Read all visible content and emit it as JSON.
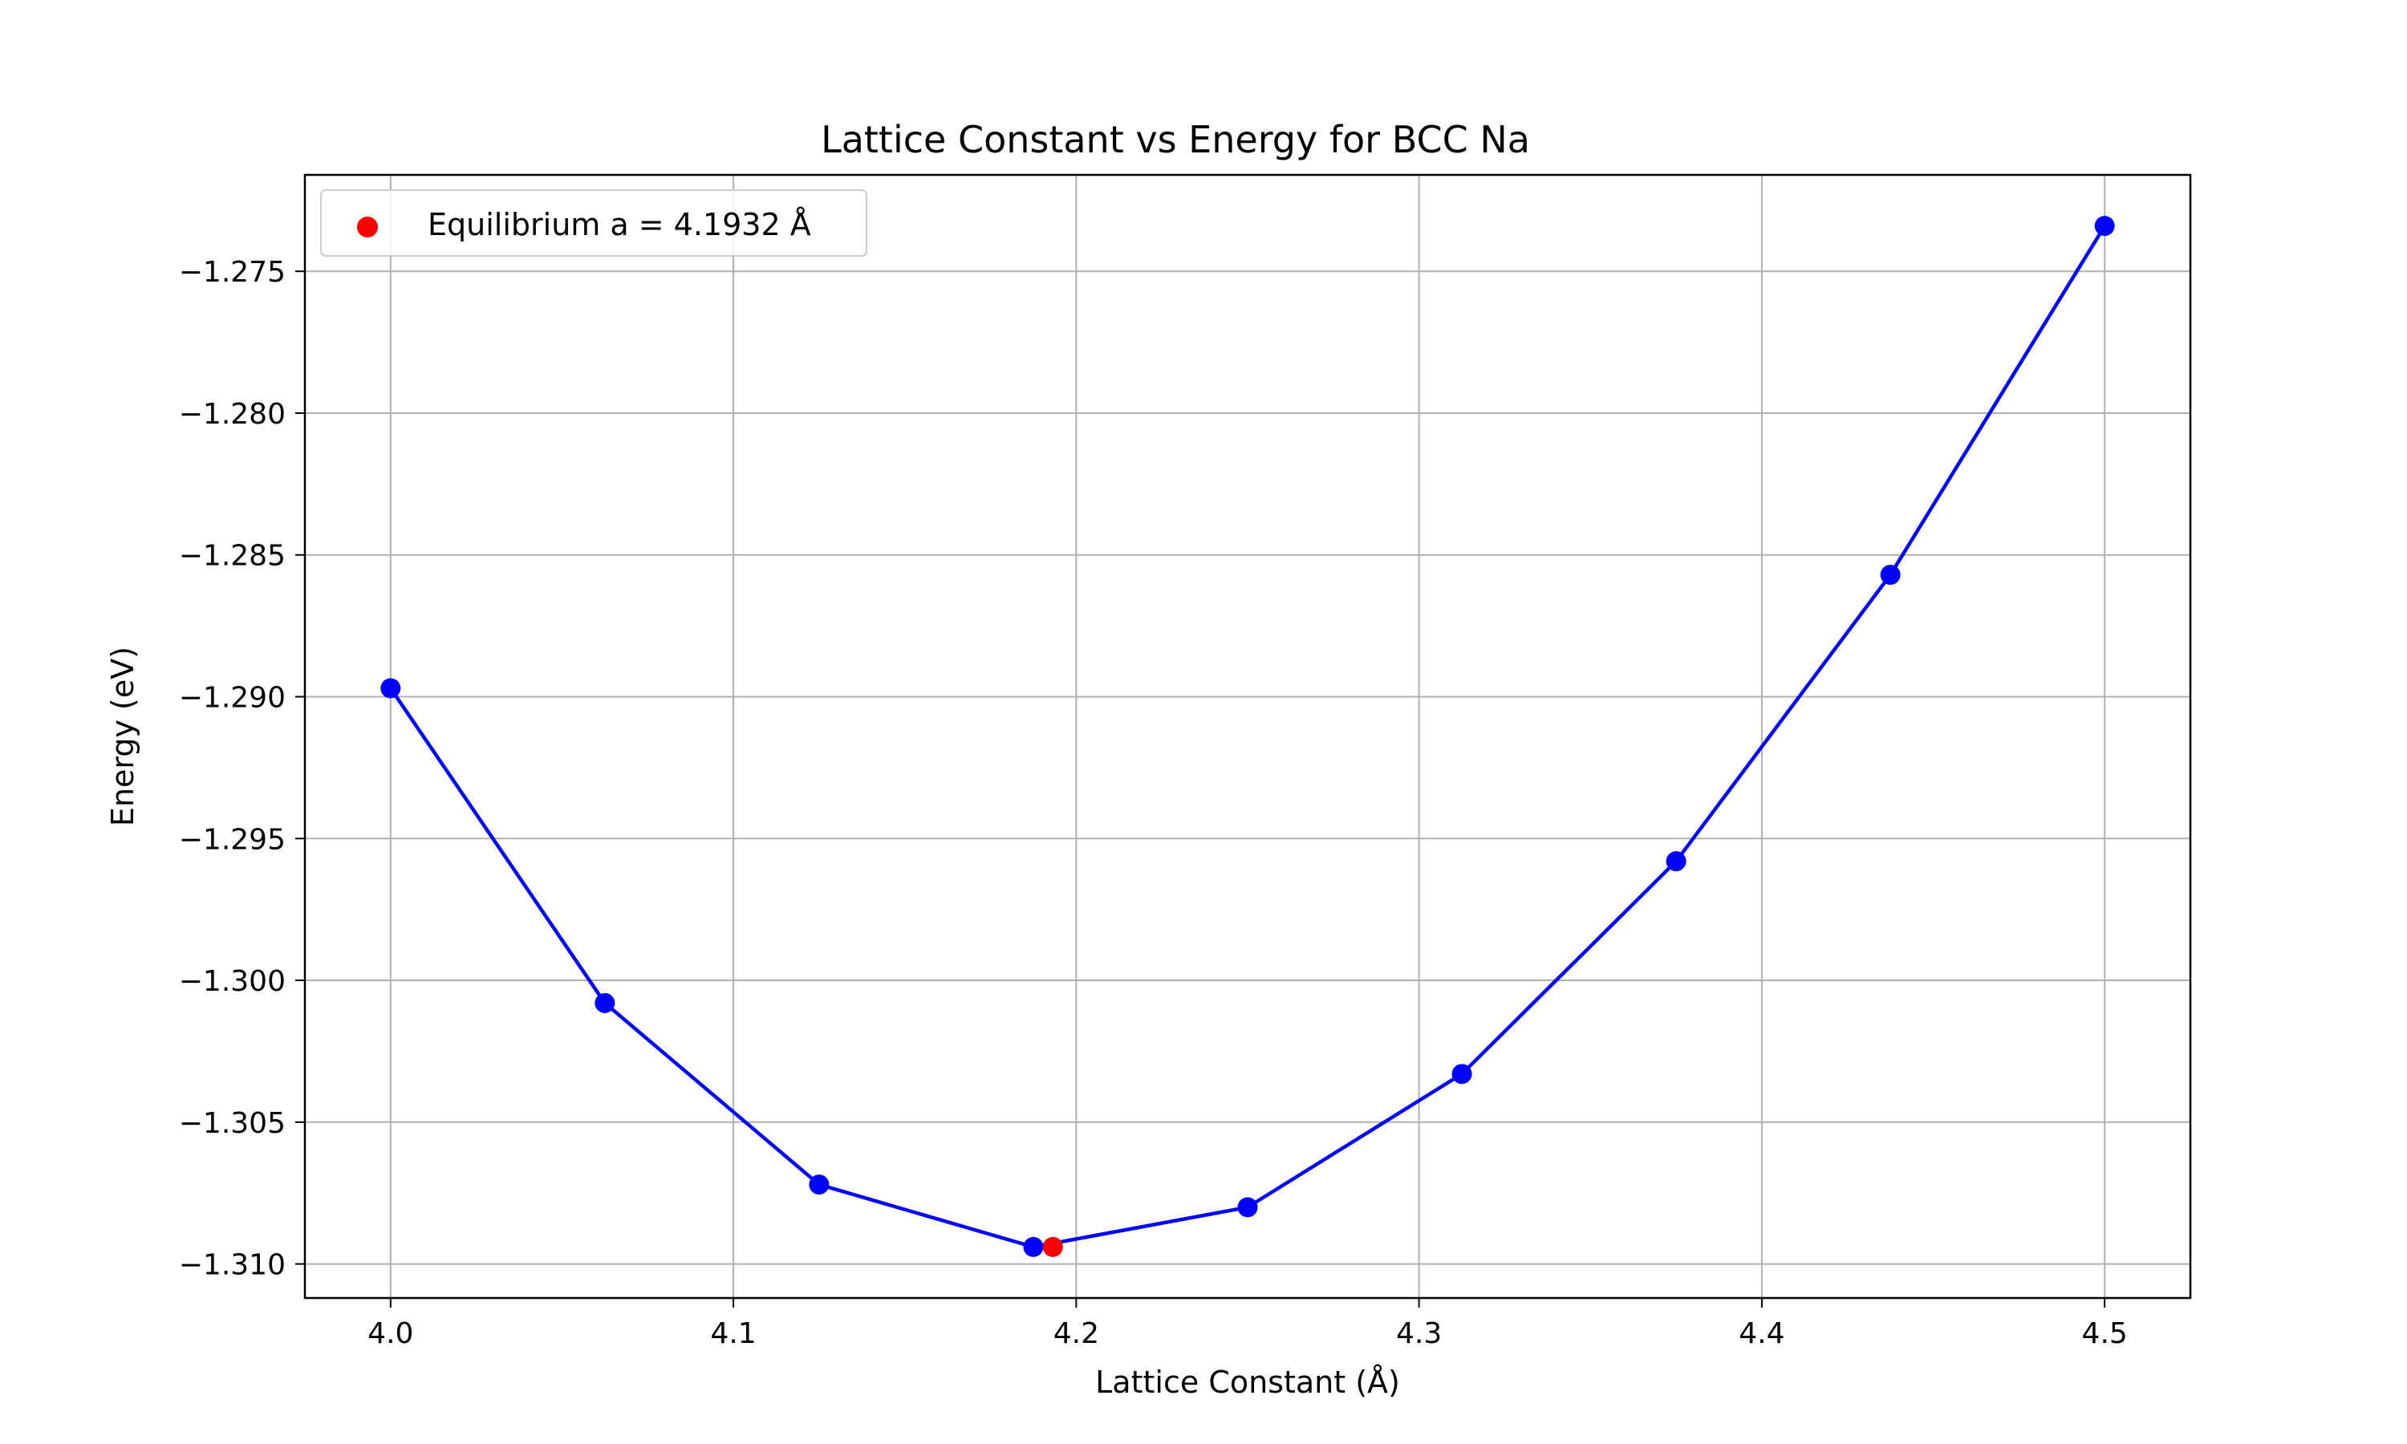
{
  "chart_data": {
    "type": "line",
    "title": "Lattice Constant vs Energy for BCC Na",
    "xlabel": "Lattice Constant (Å)",
    "ylabel": "Energy (eV)",
    "xlim": [
      3.975,
      4.525
    ],
    "ylim": [
      -1.3112,
      -1.2716
    ],
    "xticks": [
      4.0,
      4.1,
      4.2,
      4.3,
      4.4,
      4.5
    ],
    "xtick_labels": [
      "4.0",
      "4.1",
      "4.2",
      "4.3",
      "4.4",
      "4.5"
    ],
    "yticks": [
      -1.275,
      -1.28,
      -1.285,
      -1.29,
      -1.295,
      -1.3,
      -1.305,
      -1.31
    ],
    "ytick_labels": [
      "−1.275",
      "−1.280",
      "−1.285",
      "−1.290",
      "−1.295",
      "−1.300",
      "−1.305",
      "−1.310"
    ],
    "grid": true,
    "legend_position": "upper-left",
    "series": [
      {
        "color": "#0000ff",
        "marker": "circle",
        "x": [
          4.0,
          4.0625,
          4.125,
          4.1875,
          4.25,
          4.3125,
          4.375,
          4.4375,
          4.5
        ],
        "y": [
          -1.2897,
          -1.3008,
          -1.3072,
          -1.3094,
          -1.308,
          -1.3033,
          -1.2958,
          -1.2857,
          -1.2734
        ]
      }
    ],
    "highlight": {
      "name": "Equilibrium a = 4.1932 Å",
      "color": "#ff0000",
      "x": 4.1932,
      "y": -1.3094
    }
  }
}
